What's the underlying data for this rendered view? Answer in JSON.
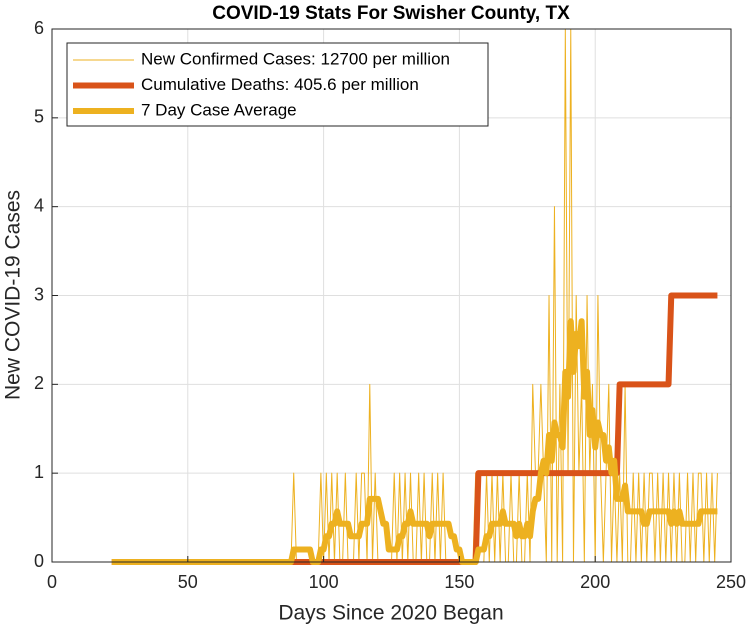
{
  "chart_data": {
    "type": "line",
    "title": "COVID-19 Stats For Swisher County, TX",
    "xlabel": "Days Since 2020 Began",
    "ylabel": "New COVID-19 Cases",
    "xlim": [
      0,
      250
    ],
    "ylim": [
      0,
      6
    ],
    "xticks": [
      0,
      50,
      100,
      150,
      200,
      250
    ],
    "yticks": [
      0,
      1,
      2,
      3,
      4,
      5,
      6
    ],
    "grid": true,
    "legend_position": "top-left",
    "x": [
      22,
      23,
      24,
      25,
      26,
      27,
      28,
      29,
      30,
      31,
      32,
      33,
      34,
      35,
      36,
      37,
      38,
      39,
      40,
      41,
      42,
      43,
      44,
      45,
      46,
      47,
      48,
      49,
      50,
      51,
      52,
      53,
      54,
      55,
      56,
      57,
      58,
      59,
      60,
      61,
      62,
      63,
      64,
      65,
      66,
      67,
      68,
      69,
      70,
      71,
      72,
      73,
      74,
      75,
      76,
      77,
      78,
      79,
      80,
      81,
      82,
      83,
      84,
      85,
      86,
      87,
      88,
      89,
      90,
      91,
      92,
      93,
      94,
      95,
      96,
      97,
      98,
      99,
      100,
      101,
      102,
      103,
      104,
      105,
      106,
      107,
      108,
      109,
      110,
      111,
      112,
      113,
      114,
      115,
      116,
      117,
      118,
      119,
      120,
      121,
      122,
      123,
      124,
      125,
      126,
      127,
      128,
      129,
      130,
      131,
      132,
      133,
      134,
      135,
      136,
      137,
      138,
      139,
      140,
      141,
      142,
      143,
      144,
      145,
      146,
      147,
      148,
      149,
      150,
      151,
      152,
      153,
      154,
      155,
      156,
      157,
      158,
      159,
      160,
      161,
      162,
      163,
      164,
      165,
      166,
      167,
      168,
      169,
      170,
      171,
      172,
      173,
      174,
      175,
      176,
      177,
      178,
      179,
      180,
      181,
      182,
      183,
      184,
      185,
      186,
      187,
      188,
      189,
      190,
      191,
      192,
      193,
      194,
      195,
      196,
      197,
      198,
      199,
      200,
      201,
      202,
      203,
      204,
      205,
      206,
      207,
      208,
      209,
      210,
      211,
      212,
      213,
      214,
      215,
      216,
      217,
      218,
      219,
      220,
      221,
      222,
      223,
      224,
      225,
      226,
      227,
      228,
      229,
      230,
      231,
      232,
      233,
      234,
      235,
      236,
      237,
      238,
      239,
      240,
      241,
      242,
      243,
      244,
      245
    ],
    "series": [
      {
        "name": "New Confirmed Cases: 12700 per million",
        "color": "#EDB120",
        "width": 1,
        "values": [
          0,
          0,
          0,
          0,
          0,
          0,
          0,
          0,
          0,
          0,
          0,
          0,
          0,
          0,
          0,
          0,
          0,
          0,
          0,
          0,
          0,
          0,
          0,
          0,
          0,
          0,
          0,
          0,
          0,
          0,
          0,
          0,
          0,
          0,
          0,
          0,
          0,
          0,
          0,
          0,
          0,
          0,
          0,
          0,
          0,
          0,
          0,
          0,
          0,
          0,
          0,
          0,
          0,
          0,
          0,
          0,
          0,
          0,
          0,
          0,
          0,
          0,
          0,
          0,
          0,
          0,
          0,
          1,
          0,
          0,
          0,
          0,
          0,
          0,
          0,
          0,
          0,
          1,
          0,
          1,
          0,
          1,
          0,
          1,
          0,
          0,
          1,
          0,
          0,
          0,
          1,
          0,
          1,
          1,
          0,
          2,
          0,
          1,
          0,
          0,
          0,
          0,
          0,
          0,
          1,
          0,
          1,
          0,
          1,
          0,
          1,
          0,
          0,
          1,
          0,
          1,
          0,
          0,
          1,
          0,
          1,
          0,
          1,
          0,
          0,
          0,
          0,
          0,
          0,
          0,
          0,
          0,
          0,
          0,
          1,
          0,
          0,
          0,
          1,
          0,
          1,
          0,
          1,
          0,
          1,
          0,
          0,
          1,
          0,
          0,
          1,
          0,
          0,
          1,
          0,
          2,
          1,
          1,
          2,
          1,
          0,
          3,
          0,
          4,
          0,
          2,
          0,
          6,
          1,
          6,
          0,
          3,
          1,
          2,
          0,
          3,
          1,
          2,
          0,
          3,
          1,
          0,
          1,
          2,
          0,
          1,
          0,
          1,
          0,
          2,
          0,
          0,
          1,
          0,
          1,
          0,
          1,
          0,
          1,
          1,
          0,
          1,
          0,
          1,
          0,
          1,
          0,
          1,
          0,
          1,
          0,
          0,
          1,
          0,
          1,
          0,
          1,
          1,
          0,
          1,
          0,
          1,
          0,
          1
        ]
      },
      {
        "name": "Cumulative Deaths: 405.6 per million",
        "color": "#D95319",
        "width": 6,
        "values": [
          0,
          0,
          0,
          0,
          0,
          0,
          0,
          0,
          0,
          0,
          0,
          0,
          0,
          0,
          0,
          0,
          0,
          0,
          0,
          0,
          0,
          0,
          0,
          0,
          0,
          0,
          0,
          0,
          0,
          0,
          0,
          0,
          0,
          0,
          0,
          0,
          0,
          0,
          0,
          0,
          0,
          0,
          0,
          0,
          0,
          0,
          0,
          0,
          0,
          0,
          0,
          0,
          0,
          0,
          0,
          0,
          0,
          0,
          0,
          0,
          0,
          0,
          0,
          0,
          0,
          0,
          0,
          0,
          0,
          0,
          0,
          0,
          0,
          0,
          0,
          0,
          0,
          0,
          0,
          0,
          0,
          0,
          0,
          0,
          0,
          0,
          0,
          0,
          0,
          0,
          0,
          0,
          0,
          0,
          0,
          0,
          0,
          0,
          0,
          0,
          0,
          0,
          0,
          0,
          0,
          0,
          0,
          0,
          0,
          0,
          0,
          0,
          0,
          0,
          0,
          0,
          0,
          0,
          0,
          0,
          0,
          0,
          0,
          0,
          0,
          0,
          0,
          0,
          0,
          0,
          0,
          0,
          0,
          0,
          0,
          1,
          1,
          1,
          1,
          1,
          1,
          1,
          1,
          1,
          1,
          1,
          1,
          1,
          1,
          1,
          1,
          1,
          1,
          1,
          1,
          1,
          1,
          1,
          1,
          1,
          1,
          1,
          1,
          1,
          1,
          1,
          1,
          1,
          1,
          1,
          1,
          1,
          1,
          1,
          1,
          1,
          1,
          1,
          1,
          1,
          1,
          1,
          1,
          1,
          1,
          1,
          1,
          2,
          2,
          2,
          2,
          2,
          2,
          2,
          2,
          2,
          2,
          2,
          2,
          2,
          2,
          2,
          2,
          2,
          2,
          2,
          3,
          3,
          3,
          3,
          3,
          3,
          3,
          3,
          3,
          3,
          3,
          3,
          3,
          3,
          3,
          3,
          3,
          3
        ]
      },
      {
        "name": "7 Day Case Average",
        "color": "#EDB120",
        "width": 6,
        "values": [
          0,
          0,
          0,
          0,
          0,
          0,
          0,
          0,
          0,
          0,
          0,
          0,
          0,
          0,
          0,
          0,
          0,
          0,
          0,
          0,
          0,
          0,
          0,
          0,
          0,
          0,
          0,
          0,
          0,
          0,
          0,
          0,
          0,
          0,
          0,
          0,
          0,
          0,
          0,
          0,
          0,
          0,
          0,
          0,
          0,
          0,
          0,
          0,
          0,
          0,
          0,
          0,
          0,
          0,
          0,
          0,
          0,
          0,
          0,
          0,
          0,
          0,
          0,
          0,
          0,
          0,
          0,
          0.14,
          0.14,
          0.14,
          0.14,
          0.14,
          0.14,
          0.14,
          0,
          0,
          0,
          0.14,
          0.14,
          0.29,
          0.29,
          0.43,
          0.43,
          0.57,
          0.43,
          0.43,
          0.43,
          0.43,
          0.29,
          0.29,
          0.29,
          0.29,
          0.43,
          0.43,
          0.43,
          0.71,
          0.71,
          0.71,
          0.71,
          0.57,
          0.43,
          0.43,
          0.14,
          0.14,
          0.14,
          0.14,
          0.29,
          0.29,
          0.43,
          0.43,
          0.57,
          0.43,
          0.43,
          0.43,
          0.43,
          0.43,
          0.43,
          0.29,
          0.43,
          0.43,
          0.43,
          0.43,
          0.43,
          0.43,
          0.43,
          0.29,
          0.29,
          0.14,
          0.14,
          0,
          0,
          0,
          0,
          0,
          0,
          0.14,
          0.14,
          0.14,
          0.29,
          0.29,
          0.43,
          0.43,
          0.43,
          0.43,
          0.57,
          0.43,
          0.43,
          0.43,
          0.43,
          0.29,
          0.43,
          0.29,
          0.29,
          0.43,
          0.29,
          0.57,
          0.71,
          0.71,
          1,
          1.14,
          1,
          1.43,
          1.14,
          1.57,
          1.43,
          1.43,
          1.29,
          2.14,
          1.86,
          2.71,
          2.14,
          2.57,
          2.43,
          2.71,
          1.86,
          2.14,
          1.43,
          1.71,
          1.29,
          1.57,
          1.43,
          1.43,
          1.14,
          1.29,
          1,
          1.14,
          0.71,
          0.71,
          0.71,
          0.86,
          0.57,
          0.57,
          0.57,
          0.57,
          0.57,
          0.57,
          0.43,
          0.43,
          0.57,
          0.57,
          0.57,
          0.57,
          0.57,
          0.57,
          0.57,
          0.57,
          0.43,
          0.57,
          0.43,
          0.57,
          0.43,
          0.43,
          0.43,
          0.43,
          0.43,
          0.43,
          0.43,
          0.57,
          0.57,
          0.57,
          0.57,
          0.57,
          0.57,
          0.57
        ]
      }
    ]
  }
}
